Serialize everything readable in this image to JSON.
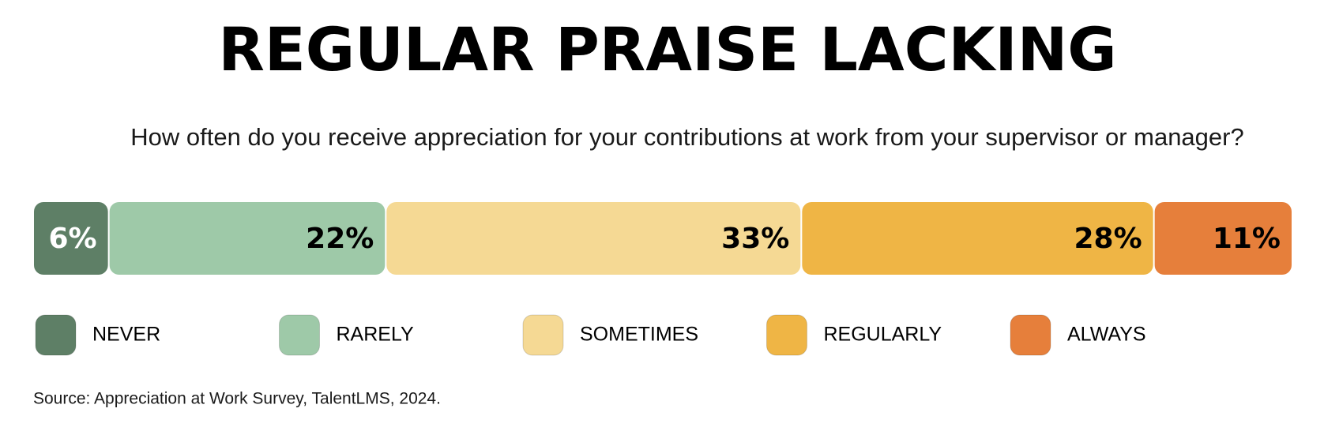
{
  "chart_data": {
    "type": "bar",
    "orientation": "horizontal",
    "stacked": true,
    "title": "REGULAR PRAISE LACKING",
    "subtitle": "How often do you receive appreciation for your contributions at work from your supervisor or manager?",
    "source": "Source: Appreciation at Work Survey, TalentLMS, 2024.",
    "categories": [
      null
    ],
    "xlim": [
      0,
      100
    ],
    "series": [
      {
        "name": "NEVER",
        "color": "#5e7f66",
        "values": [
          6
        ],
        "value_labels": [
          "6%"
        ]
      },
      {
        "name": "RARELY",
        "color": "#9ec9a8",
        "values": [
          22
        ],
        "value_labels": [
          "22%"
        ]
      },
      {
        "name": "SOMETIMES",
        "color": "#f5d994",
        "values": [
          33
        ],
        "value_labels": [
          "33%"
        ]
      },
      {
        "name": "REGULARLY",
        "color": "#efb545",
        "values": [
          28
        ],
        "value_labels": [
          "28%"
        ]
      },
      {
        "name": "ALWAYS",
        "color": "#e67f3b",
        "values": [
          11
        ],
        "value_labels": [
          "11%"
        ]
      }
    ]
  }
}
